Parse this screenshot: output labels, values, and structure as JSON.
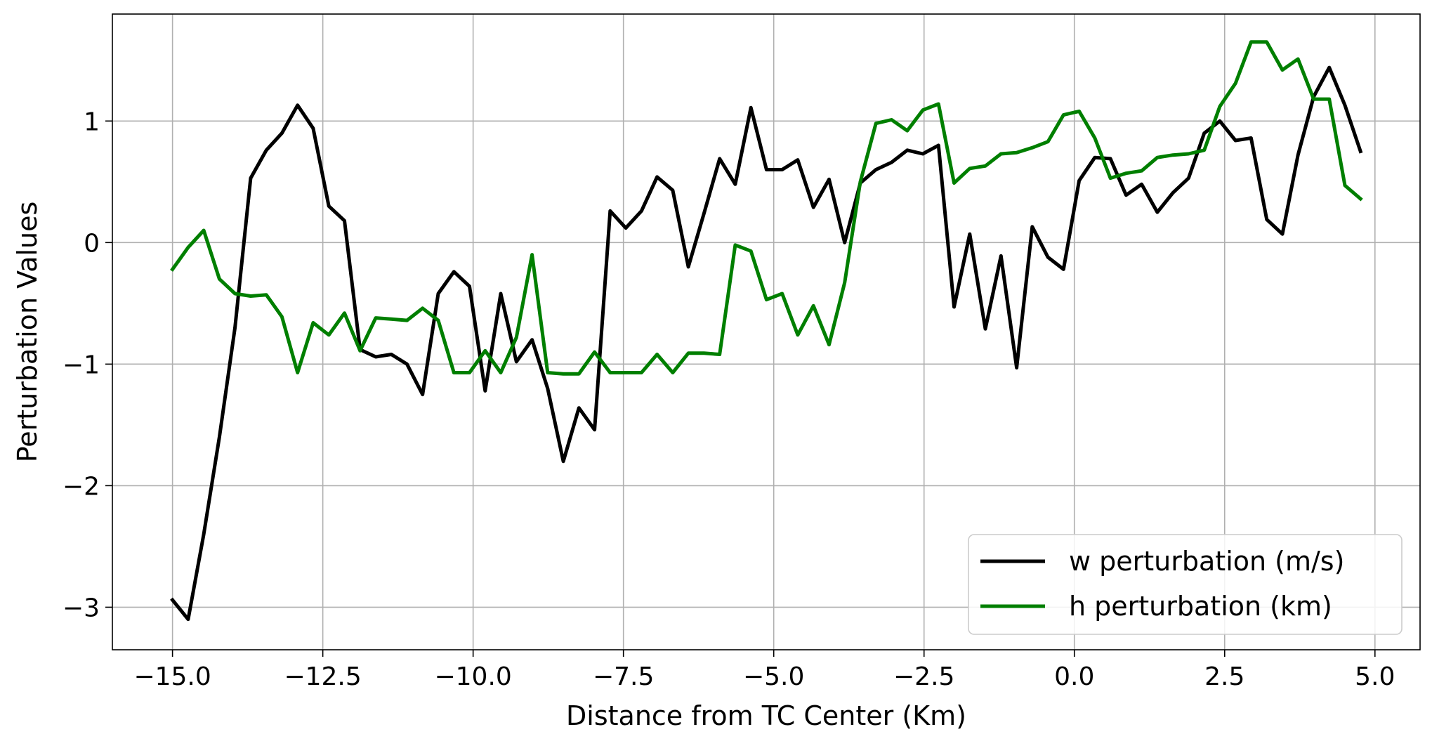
{
  "chart_data": {
    "type": "line",
    "title": "",
    "xlabel": "Distance from TC Center (Km)",
    "ylabel": "Perturbation Values",
    "xlim": [
      -16.0,
      5.75
    ],
    "ylim": [
      -3.35,
      1.88
    ],
    "x_ticks": [
      -15.0,
      -12.5,
      -10.0,
      -7.5,
      -5.0,
      -2.5,
      0.0,
      2.5,
      5.0
    ],
    "x_tick_labels": [
      "−15.0",
      "−12.5",
      "−10.0",
      "−7.5",
      "−5.0",
      "−2.5",
      "0.0",
      "2.5",
      "5.0"
    ],
    "y_ticks": [
      -3,
      -2,
      -1,
      0,
      1
    ],
    "y_tick_labels": [
      "−3",
      "−2",
      "−1",
      "0",
      "1"
    ],
    "grid": true,
    "legend_position": "lower-right",
    "x_start": -15.0,
    "x_step": 0.26,
    "series": [
      {
        "name": "w perturbation (m/s)",
        "color": "#000000",
        "values": [
          -2.94,
          -3.1,
          -2.4,
          -1.6,
          -0.7,
          0.53,
          0.76,
          0.9,
          1.13,
          0.94,
          0.3,
          0.18,
          -0.88,
          -0.94,
          -0.92,
          -1.0,
          -1.25,
          -0.42,
          -0.24,
          -0.36,
          -1.22,
          -0.42,
          -0.98,
          -0.8,
          -1.2,
          -1.8,
          -1.36,
          -1.54,
          0.26,
          0.12,
          0.26,
          0.54,
          0.43,
          -0.2,
          0.24,
          0.69,
          0.48,
          1.11,
          0.6,
          0.6,
          0.68,
          0.29,
          0.52,
          0.0,
          0.49,
          0.6,
          0.66,
          0.76,
          0.73,
          0.8,
          -0.53,
          0.07,
          -0.71,
          -0.11,
          -1.03,
          0.13,
          -0.12,
          -0.22,
          0.51,
          0.7,
          0.69,
          0.39,
          0.48,
          0.25,
          0.41,
          0.53,
          0.9,
          1.0,
          0.84,
          0.86,
          0.19,
          0.07,
          0.72,
          1.2,
          1.44,
          1.13,
          0.75
        ]
      },
      {
        "name": "h perturbation (km)",
        "color": "#007f00",
        "values": [
          -0.22,
          -0.04,
          0.1,
          -0.3,
          -0.42,
          -0.44,
          -0.43,
          -0.61,
          -1.07,
          -0.66,
          -0.76,
          -0.58,
          -0.89,
          -0.62,
          -0.63,
          -0.64,
          -0.54,
          -0.64,
          -1.07,
          -1.07,
          -0.89,
          -1.07,
          -0.78,
          -0.1,
          -1.07,
          -1.08,
          -1.08,
          -0.9,
          -1.07,
          -1.07,
          -1.07,
          -0.92,
          -1.07,
          -0.91,
          -0.91,
          -0.92,
          -0.02,
          -0.07,
          -0.47,
          -0.42,
          -0.76,
          -0.52,
          -0.84,
          -0.33,
          0.5,
          0.98,
          1.01,
          0.92,
          1.09,
          1.14,
          0.49,
          0.61,
          0.63,
          0.73,
          0.74,
          0.78,
          0.83,
          1.05,
          1.08,
          0.86,
          0.53,
          0.57,
          0.59,
          0.7,
          0.72,
          0.73,
          0.76,
          1.12,
          1.31,
          1.65,
          1.65,
          1.42,
          1.51,
          1.18,
          1.18,
          0.47,
          0.36
        ]
      }
    ]
  }
}
